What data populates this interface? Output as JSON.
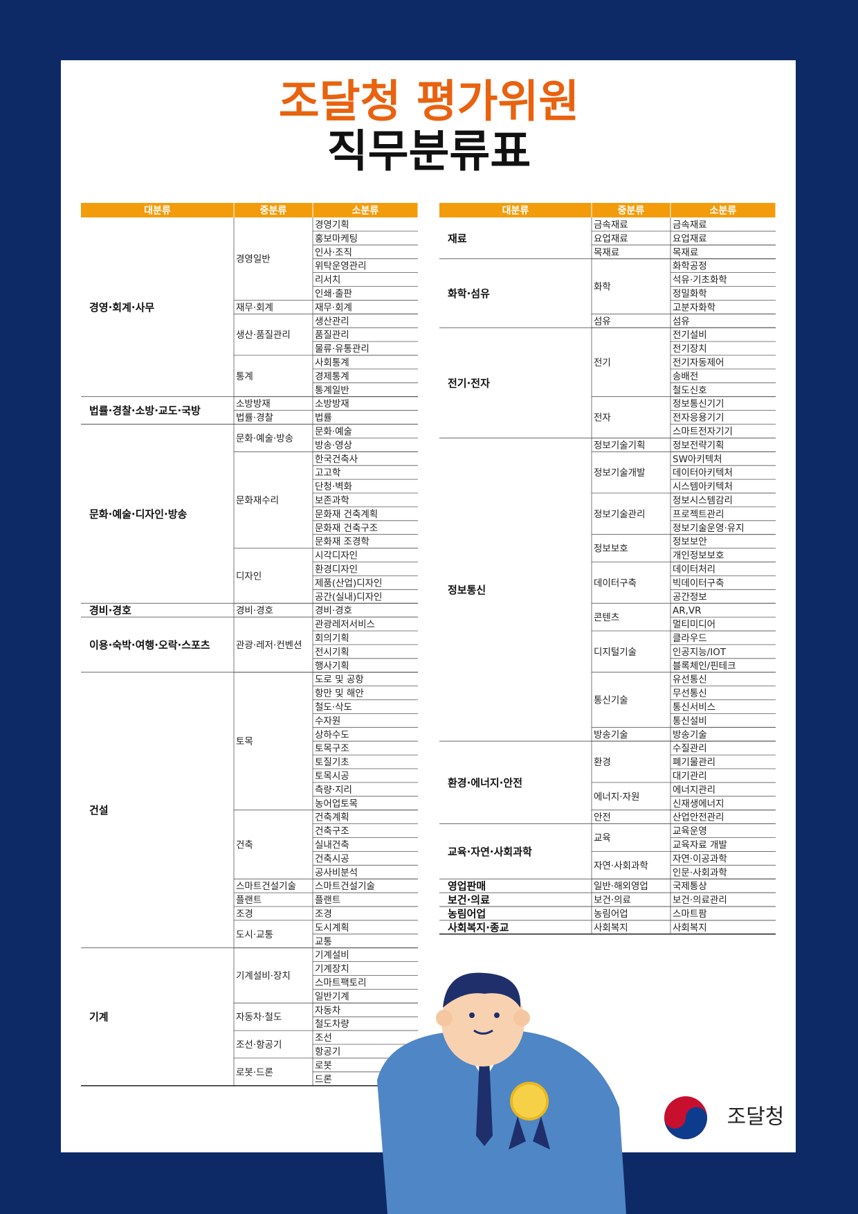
{
  "title": {
    "line1": "조달청 평가위원",
    "line2": "직무분류표"
  },
  "tables": [
    {
      "headers": [
        "대분류",
        "중분류",
        "소분류"
      ],
      "groups": [
        {
          "major": "경영·회계·사무",
          "subs": [
            {
              "mid": "경영일반",
              "items": [
                "경영기획",
                "홍보마케팅",
                "인사·조직",
                "위탁운영관리",
                "리서치",
                "인쇄·출판"
              ]
            },
            {
              "mid": "재무·회계",
              "items": [
                "재무·회계"
              ]
            },
            {
              "mid": "생산·품질관리",
              "items": [
                "생산관리",
                "품질관리",
                "물류·유통관리"
              ]
            },
            {
              "mid": "통계",
              "items": [
                "사회통계",
                "경제통계",
                "통계일반"
              ]
            }
          ]
        },
        {
          "major": "법률·경찰·소방·교도·국방",
          "subs": [
            {
              "mid": "소방방재",
              "items": [
                "소방방재"
              ]
            },
            {
              "mid": "법률·경찰",
              "items": [
                "법률"
              ]
            }
          ]
        },
        {
          "major": "문화·예술·디자인·방송",
          "subs": [
            {
              "mid": "문화·예술·방송",
              "items": [
                "문화·예술",
                "방송·영상"
              ]
            },
            {
              "mid": "문화재수리",
              "items": [
                "한국건축사",
                "고고학",
                "단청·벽화",
                "보존과학",
                "문화재 건축계획",
                "문화재 건축구조",
                "문화재 조경학"
              ]
            },
            {
              "mid": "디자인",
              "items": [
                "시각디자인",
                "환경디자인",
                "제품(산업)디자인",
                "공간(실내)디자인"
              ]
            }
          ]
        },
        {
          "major": "경비·경호",
          "subs": [
            {
              "mid": "경비·경호",
              "items": [
                "경비·경호"
              ]
            }
          ]
        },
        {
          "major": "이용·숙박·여행·오락·스포츠",
          "subs": [
            {
              "mid": "관광·레저·컨벤션",
              "items": [
                "관광레저서비스",
                "회의기획",
                "전시기획",
                "행사기획"
              ]
            }
          ]
        },
        {
          "major": "건설",
          "subs": [
            {
              "mid": "토목",
              "items": [
                "도로 및 공항",
                "항만 및 해안",
                "철도·삭도",
                "수자원",
                "상하수도",
                "토목구조",
                "토질기초",
                "토목시공",
                "측량·지리",
                "농어업토목"
              ]
            },
            {
              "mid": "건축",
              "items": [
                "건축계획",
                "건축구조",
                "실내건축",
                "건축시공",
                "공사비분석"
              ]
            },
            {
              "mid": "스마트건설기술",
              "items": [
                "스마트건설기술"
              ]
            },
            {
              "mid": "플랜트",
              "items": [
                "플랜트"
              ]
            },
            {
              "mid": "조경",
              "items": [
                "조경"
              ]
            },
            {
              "mid": "도시·교통",
              "items": [
                "도시계획",
                "교통"
              ]
            }
          ]
        },
        {
          "major": "기계",
          "subs": [
            {
              "mid": "기계설비·장치",
              "items": [
                "기계설비",
                "기계장치",
                "스마트팩토리",
                "일반기계"
              ]
            },
            {
              "mid": "자동차·철도",
              "items": [
                "자동차",
                "철도차량"
              ]
            },
            {
              "mid": "조선·항공기",
              "items": [
                "조선",
                "항공기"
              ]
            },
            {
              "mid": "로봇·드론",
              "items": [
                "로봇",
                "드론"
              ]
            }
          ]
        }
      ]
    },
    {
      "headers": [
        "대분류",
        "중분류",
        "소분류"
      ],
      "groups": [
        {
          "major": "재료",
          "subs": [
            {
              "mid": "금속재료",
              "items": [
                "금속재료"
              ]
            },
            {
              "mid": "요업재료",
              "items": [
                "요업재료"
              ]
            },
            {
              "mid": "목재료",
              "items": [
                "목재료"
              ]
            }
          ]
        },
        {
          "major": "화학·섬유",
          "subs": [
            {
              "mid": "화학",
              "items": [
                "화학공정",
                "석유·기초화학",
                "정밀화학",
                "고분자화학"
              ]
            },
            {
              "mid": "섬유",
              "items": [
                "섬유"
              ]
            }
          ]
        },
        {
          "major": "전기·전자",
          "subs": [
            {
              "mid": "전기",
              "items": [
                "전기설비",
                "전기장치",
                "전기자동제어",
                "송배전",
                "철도신호"
              ]
            },
            {
              "mid": "전자",
              "items": [
                "정보통신기기",
                "전자응용기기",
                "스마트전자기기"
              ]
            }
          ]
        },
        {
          "major": "정보통신",
          "subs": [
            {
              "mid": "정보기술기획",
              "items": [
                "정보전략기획"
              ]
            },
            {
              "mid": "정보기술개발",
              "items": [
                "SW아키텍처",
                "데이터아키텍처",
                "시스템아키텍처"
              ]
            },
            {
              "mid": "정보기술관리",
              "items": [
                "정보시스템감리",
                "프로젝트관리",
                "정보기술운영·유지"
              ]
            },
            {
              "mid": "정보보호",
              "items": [
                "정보보안",
                "개인정보보호"
              ]
            },
            {
              "mid": "데이터구축",
              "items": [
                "데이터처리",
                "빅데이터구축",
                "공간정보"
              ]
            },
            {
              "mid": "콘텐츠",
              "items": [
                "AR,VR",
                "멀티미디어"
              ]
            },
            {
              "mid": "디지털기술",
              "items": [
                "클라우드",
                "인공지능/IOT",
                "블록체인/핀테크"
              ]
            },
            {
              "mid": "통신기술",
              "items": [
                "유선통신",
                "무선통신",
                "통신서비스",
                "통신설비"
              ]
            },
            {
              "mid": "방송기술",
              "items": [
                "방송기술"
              ]
            }
          ]
        },
        {
          "major": "환경·에너지·안전",
          "subs": [
            {
              "mid": "환경",
              "items": [
                "수질관리",
                "폐기물관리",
                "대기관리"
              ]
            },
            {
              "mid": "에너지·자원",
              "items": [
                "에너지관리",
                "신재생에너지"
              ]
            },
            {
              "mid": "안전",
              "items": [
                "산업안전관리"
              ]
            }
          ]
        },
        {
          "major": "교육·자연·사회과학",
          "subs": [
            {
              "mid": "교육",
              "items": [
                "교육운영",
                "교육자료 개발"
              ]
            },
            {
              "mid": "자연·사회과학",
              "items": [
                "자연·이공과학",
                "인문·사회과학"
              ]
            }
          ]
        },
        {
          "major": "영업판매",
          "subs": [
            {
              "mid": "일반·해외영업",
              "items": [
                "국제통상"
              ]
            }
          ]
        },
        {
          "major": "보건·의료",
          "subs": [
            {
              "mid": "보건·의료",
              "items": [
                "보건·의료관리"
              ]
            }
          ]
        },
        {
          "major": "농림어업",
          "subs": [
            {
              "mid": "농림어업",
              "items": [
                "스마트팜"
              ]
            }
          ]
        },
        {
          "major": "사회복지·종교",
          "subs": [
            {
              "mid": "사회복지",
              "items": [
                "사회복지"
              ]
            }
          ]
        }
      ]
    }
  ],
  "logo": {
    "text": "조달청"
  }
}
